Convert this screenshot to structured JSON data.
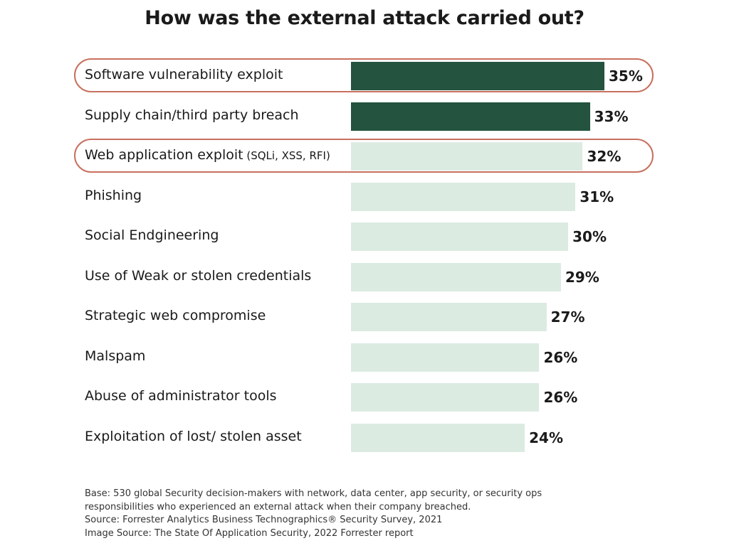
{
  "chart_data": {
    "type": "bar",
    "orientation": "horizontal",
    "title": "How was the external attack carried out?",
    "categories": [
      "Software vulnerability exploit",
      "Supply chain/third party breach",
      "Web application exploit",
      "Phishing",
      "Social Endgineering",
      "Use of Weak or stolen credentials",
      "Strategic web compromise",
      "Malspam",
      "Abuse of administrator tools",
      "Exploitation of lost/ stolen asset"
    ],
    "category_notes": [
      "",
      "",
      "(SQLi, XSS, RFI)",
      "",
      "",
      "",
      "",
      "",
      "",
      ""
    ],
    "values": [
      35,
      33,
      32,
      31,
      30,
      29,
      27,
      26,
      26,
      24
    ],
    "value_labels": [
      "35%",
      "33%",
      "32%",
      "31%",
      "30%",
      "29%",
      "27%",
      "26%",
      "26%",
      "24%"
    ],
    "dark_bars": [
      0,
      1
    ],
    "highlighted_rows": [
      0,
      2
    ],
    "xlim": [
      0,
      35
    ],
    "colors": {
      "dark": "#24533f",
      "light": "#dcebe2",
      "highlight": "#c8705e"
    }
  },
  "footnotes": [
    "Base: 530 global Security decision-makers with network, data center, app security, or security ops",
    "responsibilities who experienced an external attack when their company breached.",
    "Source: Forrester Analytics Business Technographics® Security Survey, 2021",
    "Image Source: The State Of Application Security, 2022 Forrester report"
  ]
}
